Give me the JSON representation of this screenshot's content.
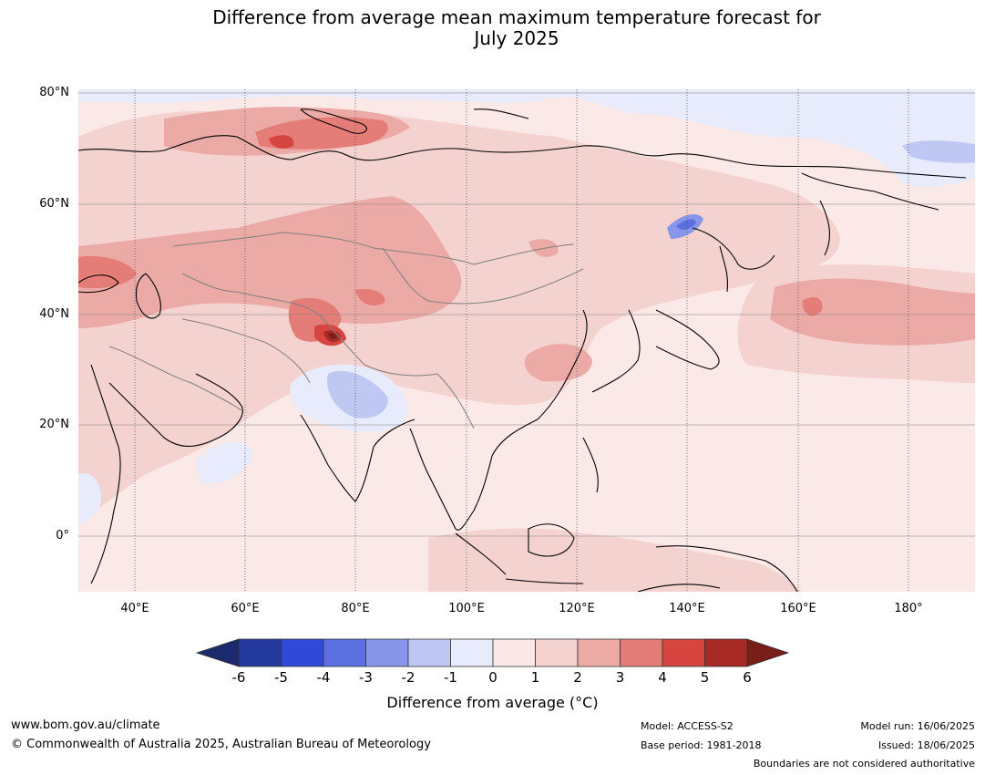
{
  "title": {
    "line1": "Difference from average mean maximum temperature forecast for",
    "line2": "July 2025"
  },
  "map": {
    "lat_labels": [
      "80°N",
      "60°N",
      "40°N",
      "20°N",
      "0°"
    ],
    "lon_labels": [
      "40°E",
      "60°E",
      "80°E",
      "100°E",
      "120°E",
      "140°E",
      "160°E",
      "180°"
    ],
    "colors": {
      "ocean_background": "#fbe9e7",
      "coast": "#000000",
      "boundary": "#808080"
    }
  },
  "colorbar": {
    "ticks": [
      "-6",
      "-5",
      "-4",
      "-3",
      "-2",
      "-1",
      "0",
      "1",
      "2",
      "3",
      "4",
      "5",
      "6"
    ],
    "colors": [
      "#1a2a6c",
      "#253a9e",
      "#3049d8",
      "#5b6fe0",
      "#8796e8",
      "#bfc8f3",
      "#e8ebfb",
      "#fbe8e6",
      "#f4d2cf",
      "#ecaaa6",
      "#e47d78",
      "#d64540",
      "#a82a24",
      "#7a1e1a"
    ],
    "label": "Difference from average ($^\\circ$C)",
    "label_display": "Difference from average (°C)"
  },
  "footer": {
    "website": "www.bom.gov.au/climate",
    "copyright": "© Commonwealth of Australia 2025, Australian Bureau of Meteorology",
    "model": "Model: ACCESS-S2",
    "base_period": "Base period: 1981-2018",
    "model_run": "Model run: 16/06/2025",
    "issued": "Issued: 18/06/2025",
    "disclaimer": "Boundaries are not considered authoritative"
  }
}
